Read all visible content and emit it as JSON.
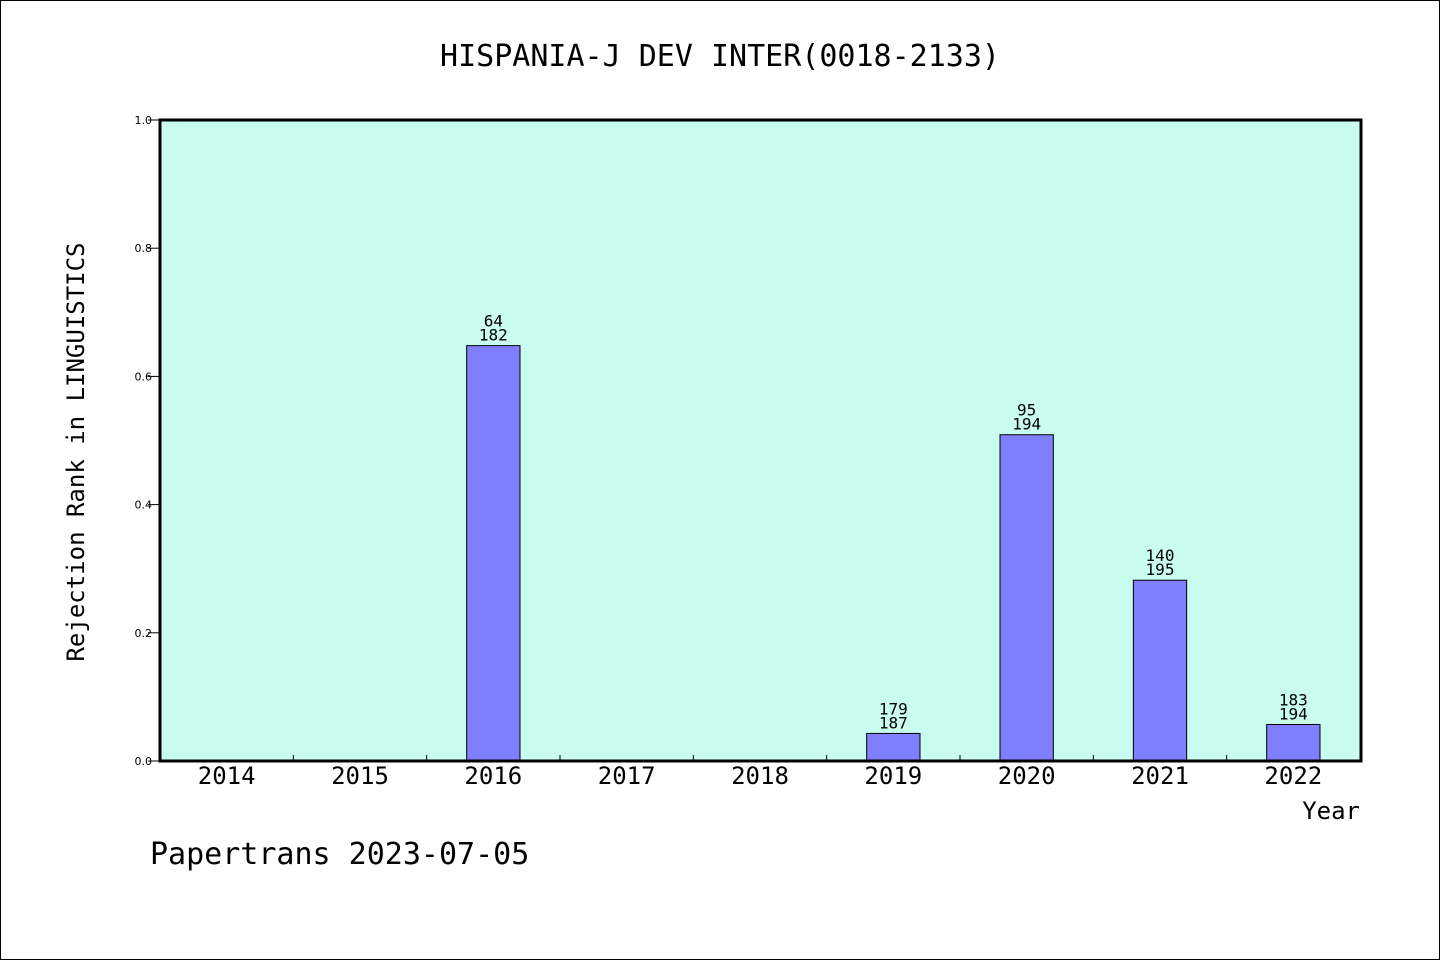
{
  "chart_data": {
    "type": "bar",
    "title": "HISPANIA-J DEV INTER(0018-2133)",
    "xlabel": "Year",
    "ylabel": "Rejection Rank in LINGUISTICS",
    "ylim": [
      0,
      1.0
    ],
    "yticks": [
      "0.0",
      "0.2",
      "0.4",
      "0.6",
      "0.8",
      "1.0"
    ],
    "categories": [
      "2014",
      "2015",
      "2016",
      "2017",
      "2018",
      "2019",
      "2020",
      "2021",
      "2022"
    ],
    "values": [
      null,
      null,
      0.648,
      null,
      null,
      0.043,
      0.509,
      0.282,
      0.057
    ],
    "bar_labels": [
      null,
      null,
      {
        "rank": "64",
        "total": "182"
      },
      null,
      null,
      {
        "rank": "179",
        "total": "187"
      },
      {
        "rank": "95",
        "total": "194"
      },
      {
        "rank": "140",
        "total": "195"
      },
      {
        "rank": "183",
        "total": "194"
      }
    ],
    "grid": false,
    "colors": {
      "plot_background": "#c8fdef",
      "bar_fill": "#8080ff",
      "bar_stroke": "#000000"
    }
  },
  "footer": {
    "text": "Papertrans 2023-07-05"
  }
}
